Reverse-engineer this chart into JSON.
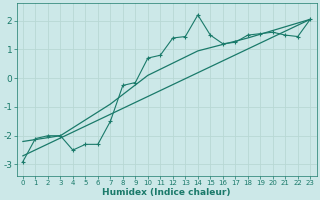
{
  "xlabel": "Humidex (Indice chaleur)",
  "bg_color": "#cce8e8",
  "grid_color": "#b8d8d4",
  "line_color": "#1a7a6a",
  "spine_color": "#888888",
  "xlim": [
    -0.5,
    23.5
  ],
  "ylim": [
    -3.4,
    2.6
  ],
  "xticks": [
    0,
    1,
    2,
    3,
    4,
    5,
    6,
    7,
    8,
    9,
    10,
    11,
    12,
    13,
    14,
    15,
    16,
    17,
    18,
    19,
    20,
    21,
    22,
    23
  ],
  "yticks": [
    -3,
    -2,
    -1,
    0,
    1,
    2
  ],
  "line1_x": [
    0,
    1,
    2,
    3,
    4,
    5,
    6,
    7,
    8,
    9,
    10,
    11,
    12,
    13,
    14,
    15,
    16,
    17,
    18,
    19,
    20,
    21,
    22,
    23
  ],
  "line1_y": [
    -2.9,
    -2.1,
    -2.0,
    -2.0,
    -2.5,
    -2.3,
    -2.3,
    -1.5,
    -0.25,
    -0.15,
    0.7,
    0.8,
    1.4,
    1.45,
    2.2,
    1.5,
    1.2,
    1.25,
    1.5,
    1.55,
    1.6,
    1.5,
    1.45,
    2.05
  ],
  "line2_x": [
    0,
    23
  ],
  "line2_y": [
    -2.7,
    2.05
  ],
  "line3_x": [
    0,
    3,
    7,
    10,
    14,
    18,
    23
  ],
  "line3_y": [
    -2.2,
    -2.0,
    -0.9,
    0.1,
    0.95,
    1.4,
    2.05
  ]
}
